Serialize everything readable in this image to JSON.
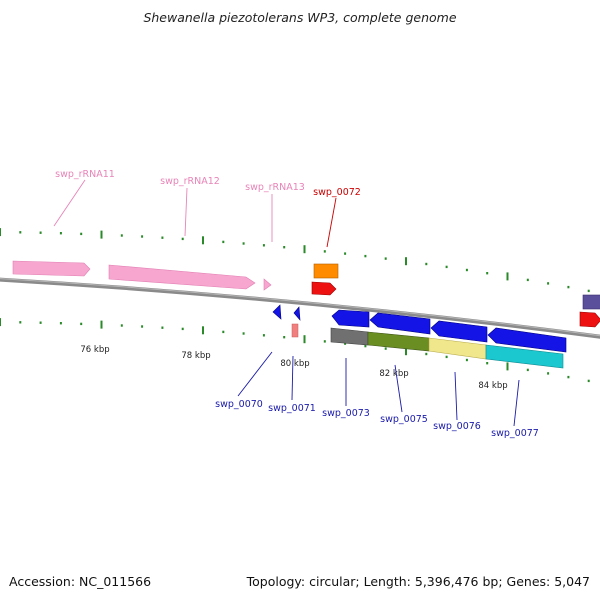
{
  "title": "Shewanella piezotolerans WP3, complete genome",
  "footer": {
    "accession": "Accession: NC_011566",
    "summary": "Topology: circular; Length: 5,396,476 bp; Genes: 5,047"
  },
  "colors": {
    "background": "#ffffff",
    "backbone": "#808080",
    "tick": "#2a8a2a",
    "rna": "#f6a6cf",
    "rna_label": "#e884b8",
    "gene_label_blue": "#1a1aaa",
    "gene_label_red": "#cc0000",
    "blue_gene": "#1414e6",
    "red_gene": "#ee1111",
    "orange_gene": "#ff8c00",
    "gray_gene": "#707070",
    "olive_gene": "#6b8e23",
    "khaki_gene": "#f0e68c",
    "cyan_gene": "#1cc8d0",
    "slate_gene": "#5a4f9a",
    "light_red_gene": "#f08080"
  },
  "ticks": [
    "76 kbp",
    "78 kbp",
    "80 kbp",
    "82 kbp",
    "84 kbp"
  ],
  "labels": {
    "swp_rRNA11": "swp_rRNA11",
    "swp_rRNA12": "swp_rRNA12",
    "swp_rRNA13": "swp_rRNA13",
    "swp_0072": "swp_0072",
    "swp_0070": "swp_0070",
    "swp_0071": "swp_0071",
    "swp_0073": "swp_0073",
    "swp_0075": "swp_0075",
    "swp_0076": "swp_0076",
    "swp_0077": "swp_0077"
  }
}
